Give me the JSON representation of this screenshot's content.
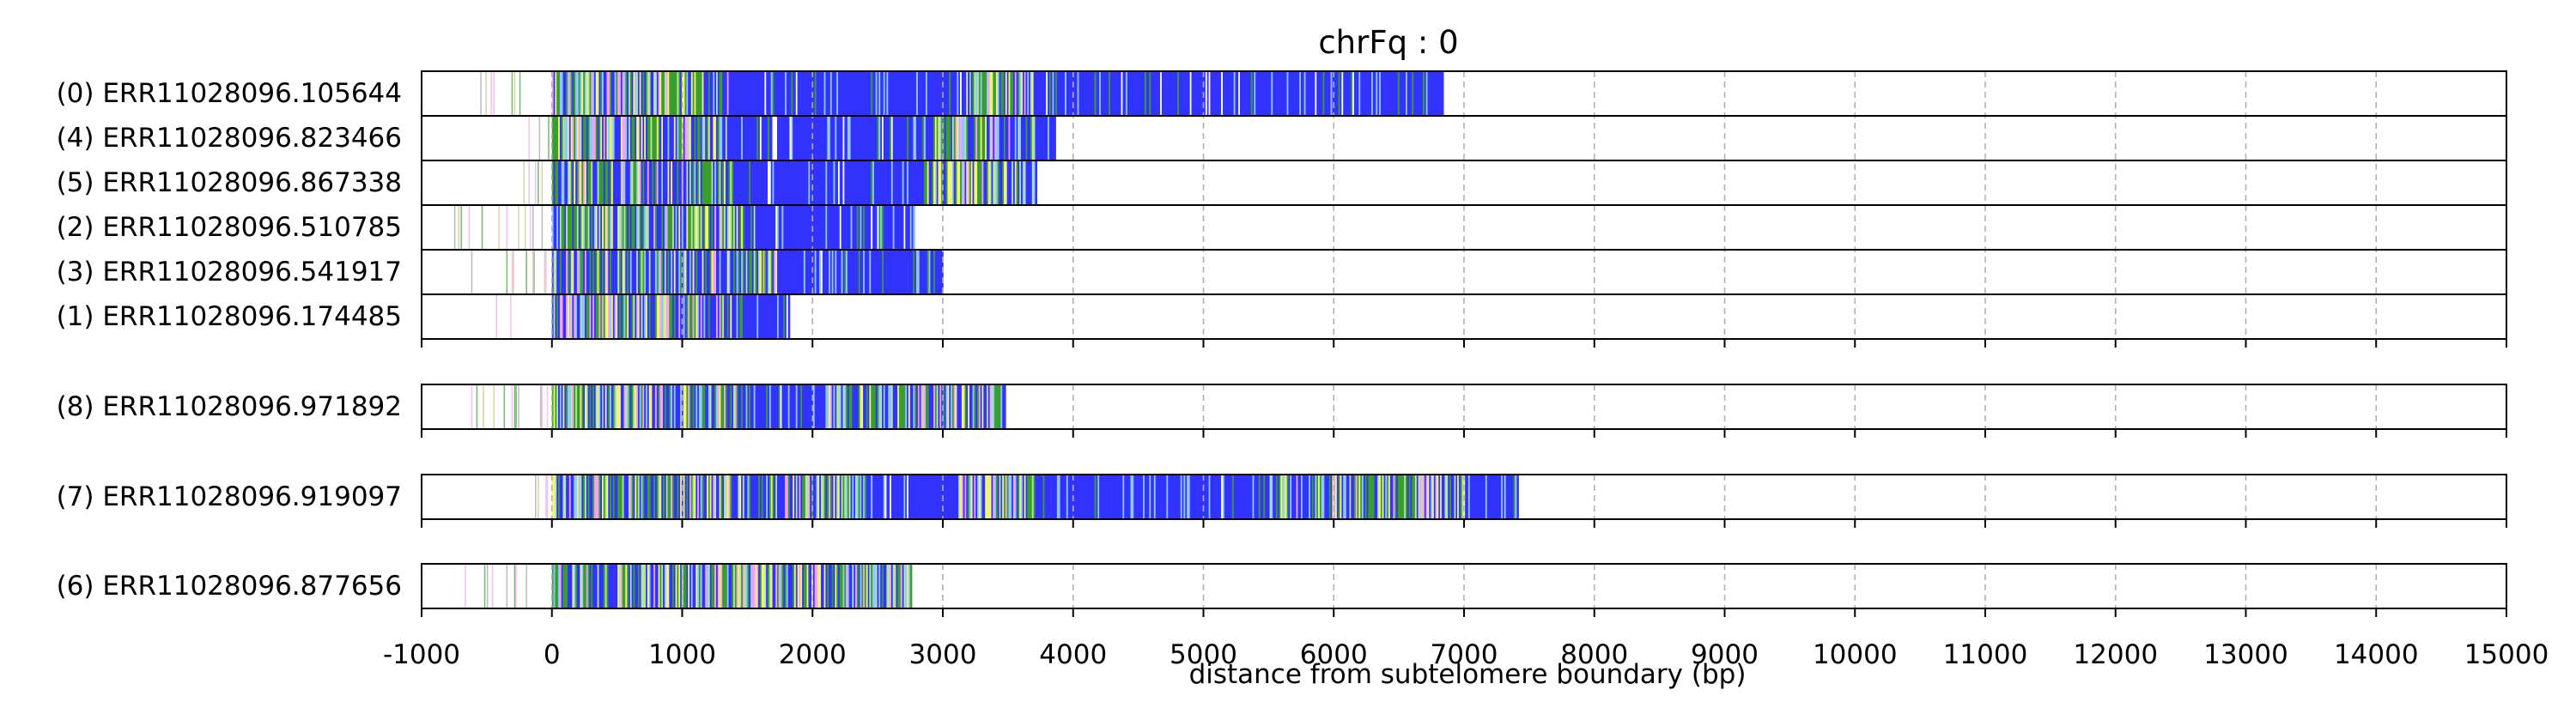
{
  "chart_data": {
    "type": "heatmap",
    "title": "chrFq : 0",
    "xlabel": "distance from subtelomere boundary (bp)",
    "ylabel": "",
    "xlim": [
      -1000,
      15000
    ],
    "xticks": [
      -1000,
      0,
      1000,
      2000,
      3000,
      4000,
      5000,
      6000,
      7000,
      8000,
      9000,
      10000,
      11000,
      12000,
      13000,
      14000,
      15000
    ],
    "xtick_labels": [
      "-1000",
      "0",
      "1000",
      "2000",
      "3000",
      "4000",
      "5000",
      "6000",
      "7000",
      "8000",
      "9000",
      "10000",
      "11000",
      "12000",
      "13000",
      "14000",
      "15000"
    ],
    "grid": "vertical dashed",
    "colors": {
      "blue": "#3333ff",
      "green": "#3a9e2f",
      "yellow": "#f3f37a",
      "pink": "#f5a3f0",
      "light_blue": "#8fc8ff",
      "light_green": "#b6e59e",
      "grey": "#9aa0a6",
      "khaki": "#c9c27a"
    },
    "groups": [
      {
        "reads": [
          {
            "label": "(0) ERR11028096.105644",
            "start": -550,
            "end": 6830,
            "main_end": 6830
          },
          {
            "label": "(4) ERR11028096.823466",
            "start": -230,
            "end": 3860,
            "main_end": 3860
          },
          {
            "label": "(5) ERR11028096.867338",
            "start": -230,
            "end": 3720,
            "main_end": 3600
          },
          {
            "label": "(2) ERR11028096.510785",
            "start": -750,
            "end": 2780,
            "main_end": 2780
          },
          {
            "label": "(3) ERR11028096.541917",
            "start": -750,
            "end": 2990,
            "main_end": 2990
          },
          {
            "label": "(1) ERR11028096.174485",
            "start": -450,
            "end": 1820,
            "main_end": 1820
          }
        ]
      },
      {
        "reads": [
          {
            "label": "(8) ERR11028096.971892",
            "start": -620,
            "end": 3480,
            "main_end": 3480
          }
        ]
      },
      {
        "reads": [
          {
            "label": "(7) ERR11028096.919097",
            "start": -150,
            "end": 7410,
            "main_end": 7410
          }
        ]
      },
      {
        "reads": [
          {
            "label": "(6) ERR11028096.877656",
            "start": -700,
            "end": 2760,
            "main_end": 2760
          }
        ]
      }
    ]
  }
}
